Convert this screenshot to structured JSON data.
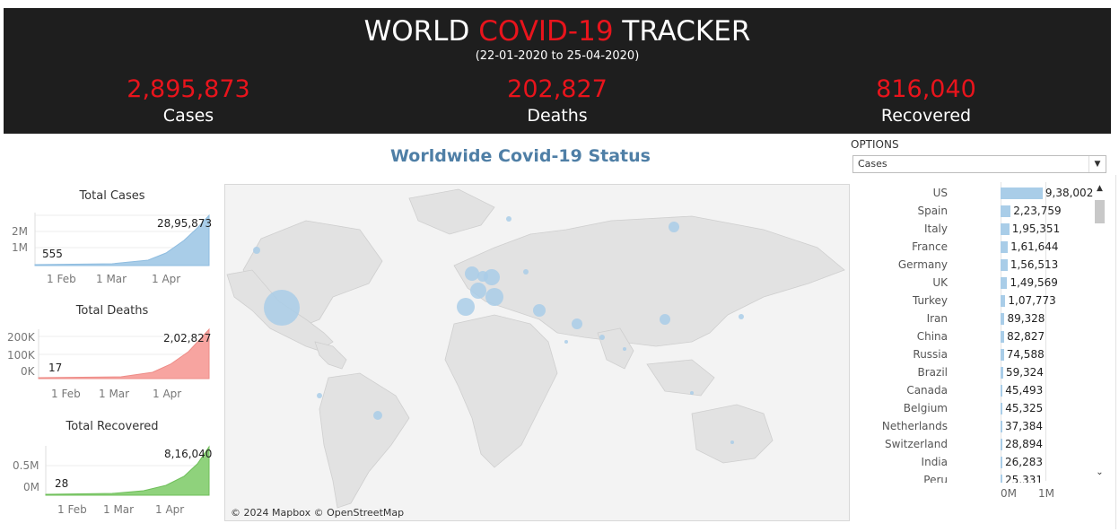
{
  "header": {
    "title_part1": "WORLD ",
    "title_part2": "COVID-19",
    "title_part3": " TRACKER",
    "date_range": "(22-01-2020 to 25-04-2020)",
    "kpis": [
      {
        "value": "2,895,873",
        "label": "Cases"
      },
      {
        "value": "202,827",
        "label": "Deaths"
      },
      {
        "value": "816,040",
        "label": "Recovered"
      }
    ]
  },
  "colors": {
    "header_bg": "#1e1e1e",
    "accent_red": "#e8141c",
    "title_blue": "#4f7fa6",
    "cases_blue": "#a9cde8",
    "deaths_red": "#f7a4a0",
    "recovered_green": "#8fd27c"
  },
  "main_title": "Worldwide Covid-19 Status",
  "mini_charts": [
    {
      "title": "Total Cases",
      "start_label": "555",
      "end_label": "28,95,873",
      "y_ticks": [
        "2M",
        "1M"
      ],
      "x_ticks": [
        "1 Feb",
        "1 Mar",
        "1 Apr"
      ]
    },
    {
      "title": "Total Deaths",
      "start_label": "17",
      "end_label": "2,02,827",
      "y_ticks": [
        "200K",
        "100K",
        "0K"
      ],
      "x_ticks": [
        "1 Feb",
        "1 Mar",
        "1 Apr"
      ]
    },
    {
      "title": "Total Recovered",
      "start_label": "28",
      "end_label": "8,16,040",
      "y_ticks": [
        "0.5M",
        "0M"
      ],
      "x_ticks": [
        "1 Feb",
        "1 Mar",
        "1 Apr"
      ]
    }
  ],
  "map": {
    "attribution": "© 2024 Mapbox © OpenStreetMap"
  },
  "options": {
    "label": "OPTIONS",
    "selected": "Cases"
  },
  "chart_data": {
    "type": "bar",
    "orientation": "horizontal",
    "categories": [
      "US",
      "Spain",
      "Italy",
      "France",
      "Germany",
      "UK",
      "Turkey",
      "Iran",
      "China",
      "Russia",
      "Brazil",
      "Canada",
      "Belgium",
      "Netherlands",
      "Switzerland",
      "India",
      "Peru"
    ],
    "values": [
      938002,
      223759,
      195351,
      161644,
      156513,
      149569,
      107773,
      89328,
      82827,
      74588,
      59324,
      45493,
      45325,
      37384,
      28894,
      26283,
      25331
    ],
    "value_labels": [
      "9,38,002",
      "2,23,759",
      "1,95,351",
      "1,61,644",
      "1,56,513",
      "1,49,569",
      "1,07,773",
      "89,328",
      "82,827",
      "74,588",
      "59,324",
      "45,493",
      "45,325",
      "37,384",
      "28,894",
      "26,283",
      "25,331"
    ],
    "x_ticks": [
      "0M",
      "1M"
    ],
    "xlim": [
      0,
      1000000
    ]
  }
}
